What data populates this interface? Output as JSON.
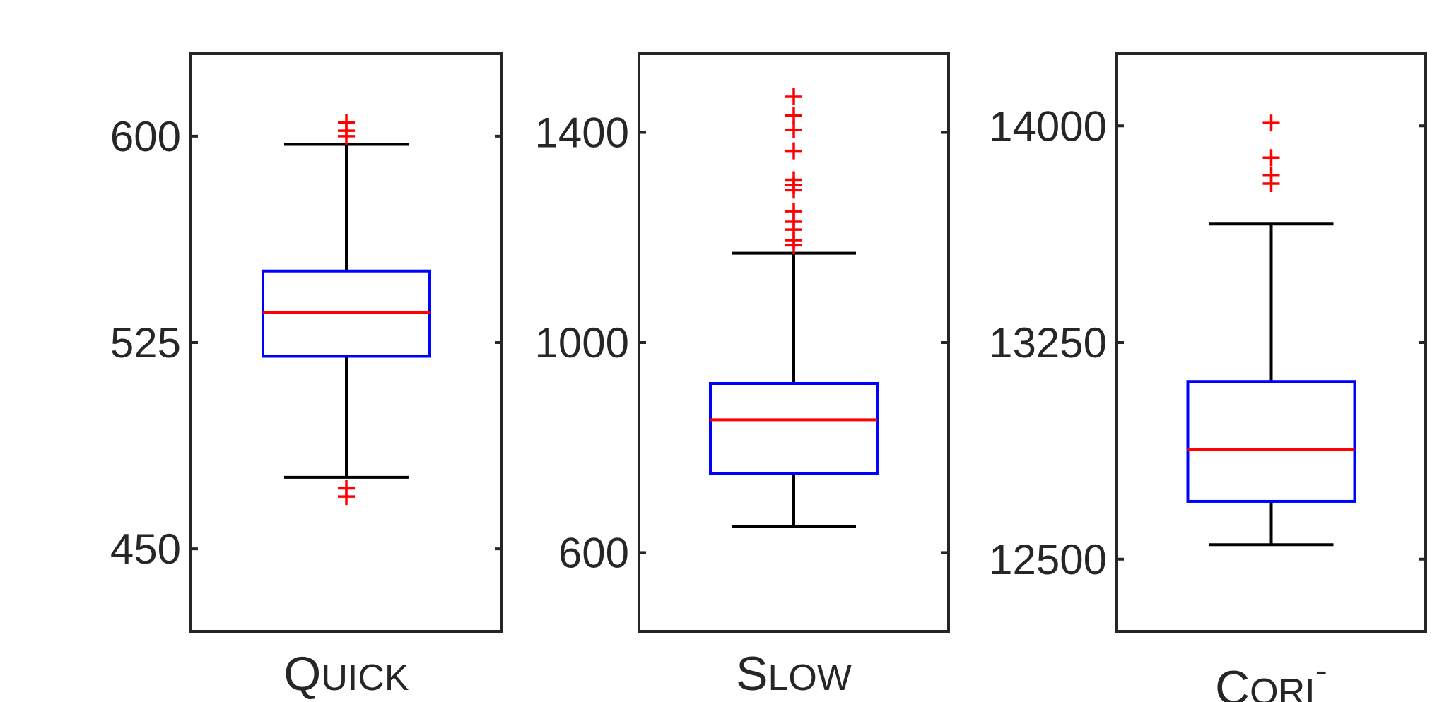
{
  "colors": {
    "box": "#0000ff",
    "median": "#ff0000",
    "whisker": "#000000",
    "outlier": "#ff0000",
    "axis": "#262626"
  },
  "chart_data": [
    {
      "type": "box",
      "xlabel": "QUICK",
      "xlabel_parts": {
        "cap": "Q",
        "rest": "UICK",
        "sup": ""
      },
      "ylim": [
        420,
        630
      ],
      "yticks": [
        450,
        525,
        600
      ],
      "ytick_labels": [
        "450",
        "525",
        "600"
      ],
      "box": {
        "whisker_low": 476,
        "q1": 520,
        "median": 536,
        "q3": 551,
        "whisker_high": 597
      },
      "outliers": [
        605,
        602,
        600,
        472,
        469
      ]
    },
    {
      "type": "box",
      "xlabel": "SLOW",
      "xlabel_parts": {
        "cap": "S",
        "rest": "LOW",
        "sup": ""
      },
      "ylim": [
        450,
        1550
      ],
      "yticks": [
        600,
        1000,
        1400
      ],
      "ytick_labels": [
        "600",
        "1000",
        "1400"
      ],
      "box": {
        "whisker_low": 650,
        "q1": 750,
        "median": 853,
        "q3": 922,
        "whisker_high": 1170
      },
      "outliers": [
        1468,
        1432,
        1405,
        1365,
        1310,
        1300,
        1290,
        1250,
        1230,
        1215,
        1195,
        1185
      ]
    },
    {
      "type": "box",
      "xlabel": "CORI-",
      "xlabel_parts": {
        "cap": "C",
        "rest": "ORI",
        "sup": "-"
      },
      "ylim": [
        12250,
        14250
      ],
      "yticks": [
        12500,
        13250,
        14000
      ],
      "ytick_labels": [
        "12500",
        "13250",
        "14000"
      ],
      "box": {
        "whisker_low": 12550,
        "q1": 12700,
        "median": 12880,
        "q3": 13115,
        "whisker_high": 13660
      },
      "outliers": [
        14010,
        13890,
        13830,
        13800
      ]
    }
  ]
}
